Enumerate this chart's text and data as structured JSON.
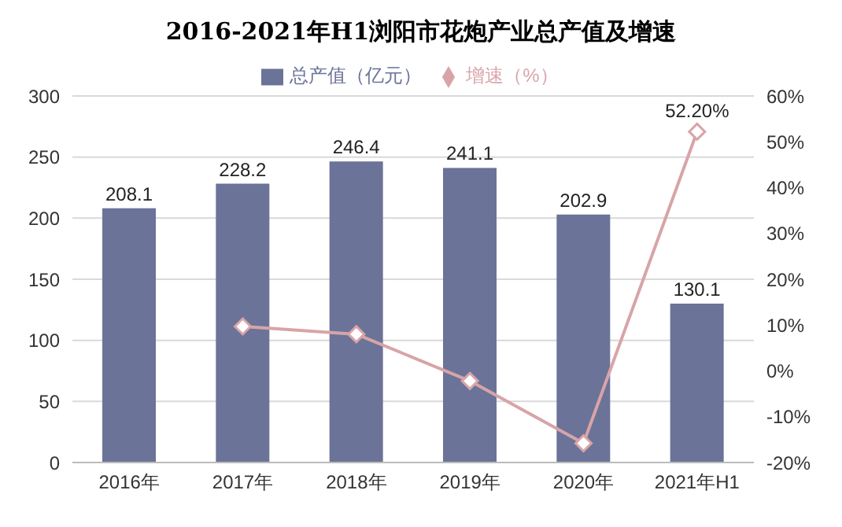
{
  "chart_data": {
    "type": "bar",
    "title": "2016-2021年H1浏阳市花炮产业总产值及增速",
    "categories": [
      "2016年",
      "2017年",
      "2018年",
      "2019年",
      "2020年",
      "2021年H1"
    ],
    "series": [
      {
        "name": "总产值（亿元）",
        "color": "#6b7398",
        "values": [
          208.1,
          228.2,
          246.4,
          241.1,
          202.9,
          130.1
        ],
        "data_labels": true
      },
      {
        "name": "增速（%）",
        "type": "line",
        "axis": "y2",
        "color": "#d8a4a8",
        "marker": "diamond",
        "values": [
          null,
          9.7,
          8.0,
          -2.2,
          -15.8,
          52.2
        ],
        "value_labels": [
          null,
          null,
          null,
          null,
          null,
          "52.20%"
        ]
      }
    ],
    "ylim": [
      0,
      300
    ],
    "yticks": [
      0,
      50,
      100,
      150,
      200,
      250,
      300
    ],
    "y2lim": [
      -20,
      60
    ],
    "y2ticks": [
      {
        "value": -20,
        "label": "-20%"
      },
      {
        "value": -10,
        "label": "-10%"
      },
      {
        "value": 0,
        "label": "0%"
      },
      {
        "value": 10,
        "label": "10%"
      },
      {
        "value": 20,
        "label": "20%"
      },
      {
        "value": 30,
        "label": "30%"
      },
      {
        "value": 40,
        "label": "40%"
      },
      {
        "value": 50,
        "label": "50%"
      },
      {
        "value": 60,
        "label": "60%"
      }
    ],
    "grid": "y",
    "legend": "top"
  }
}
